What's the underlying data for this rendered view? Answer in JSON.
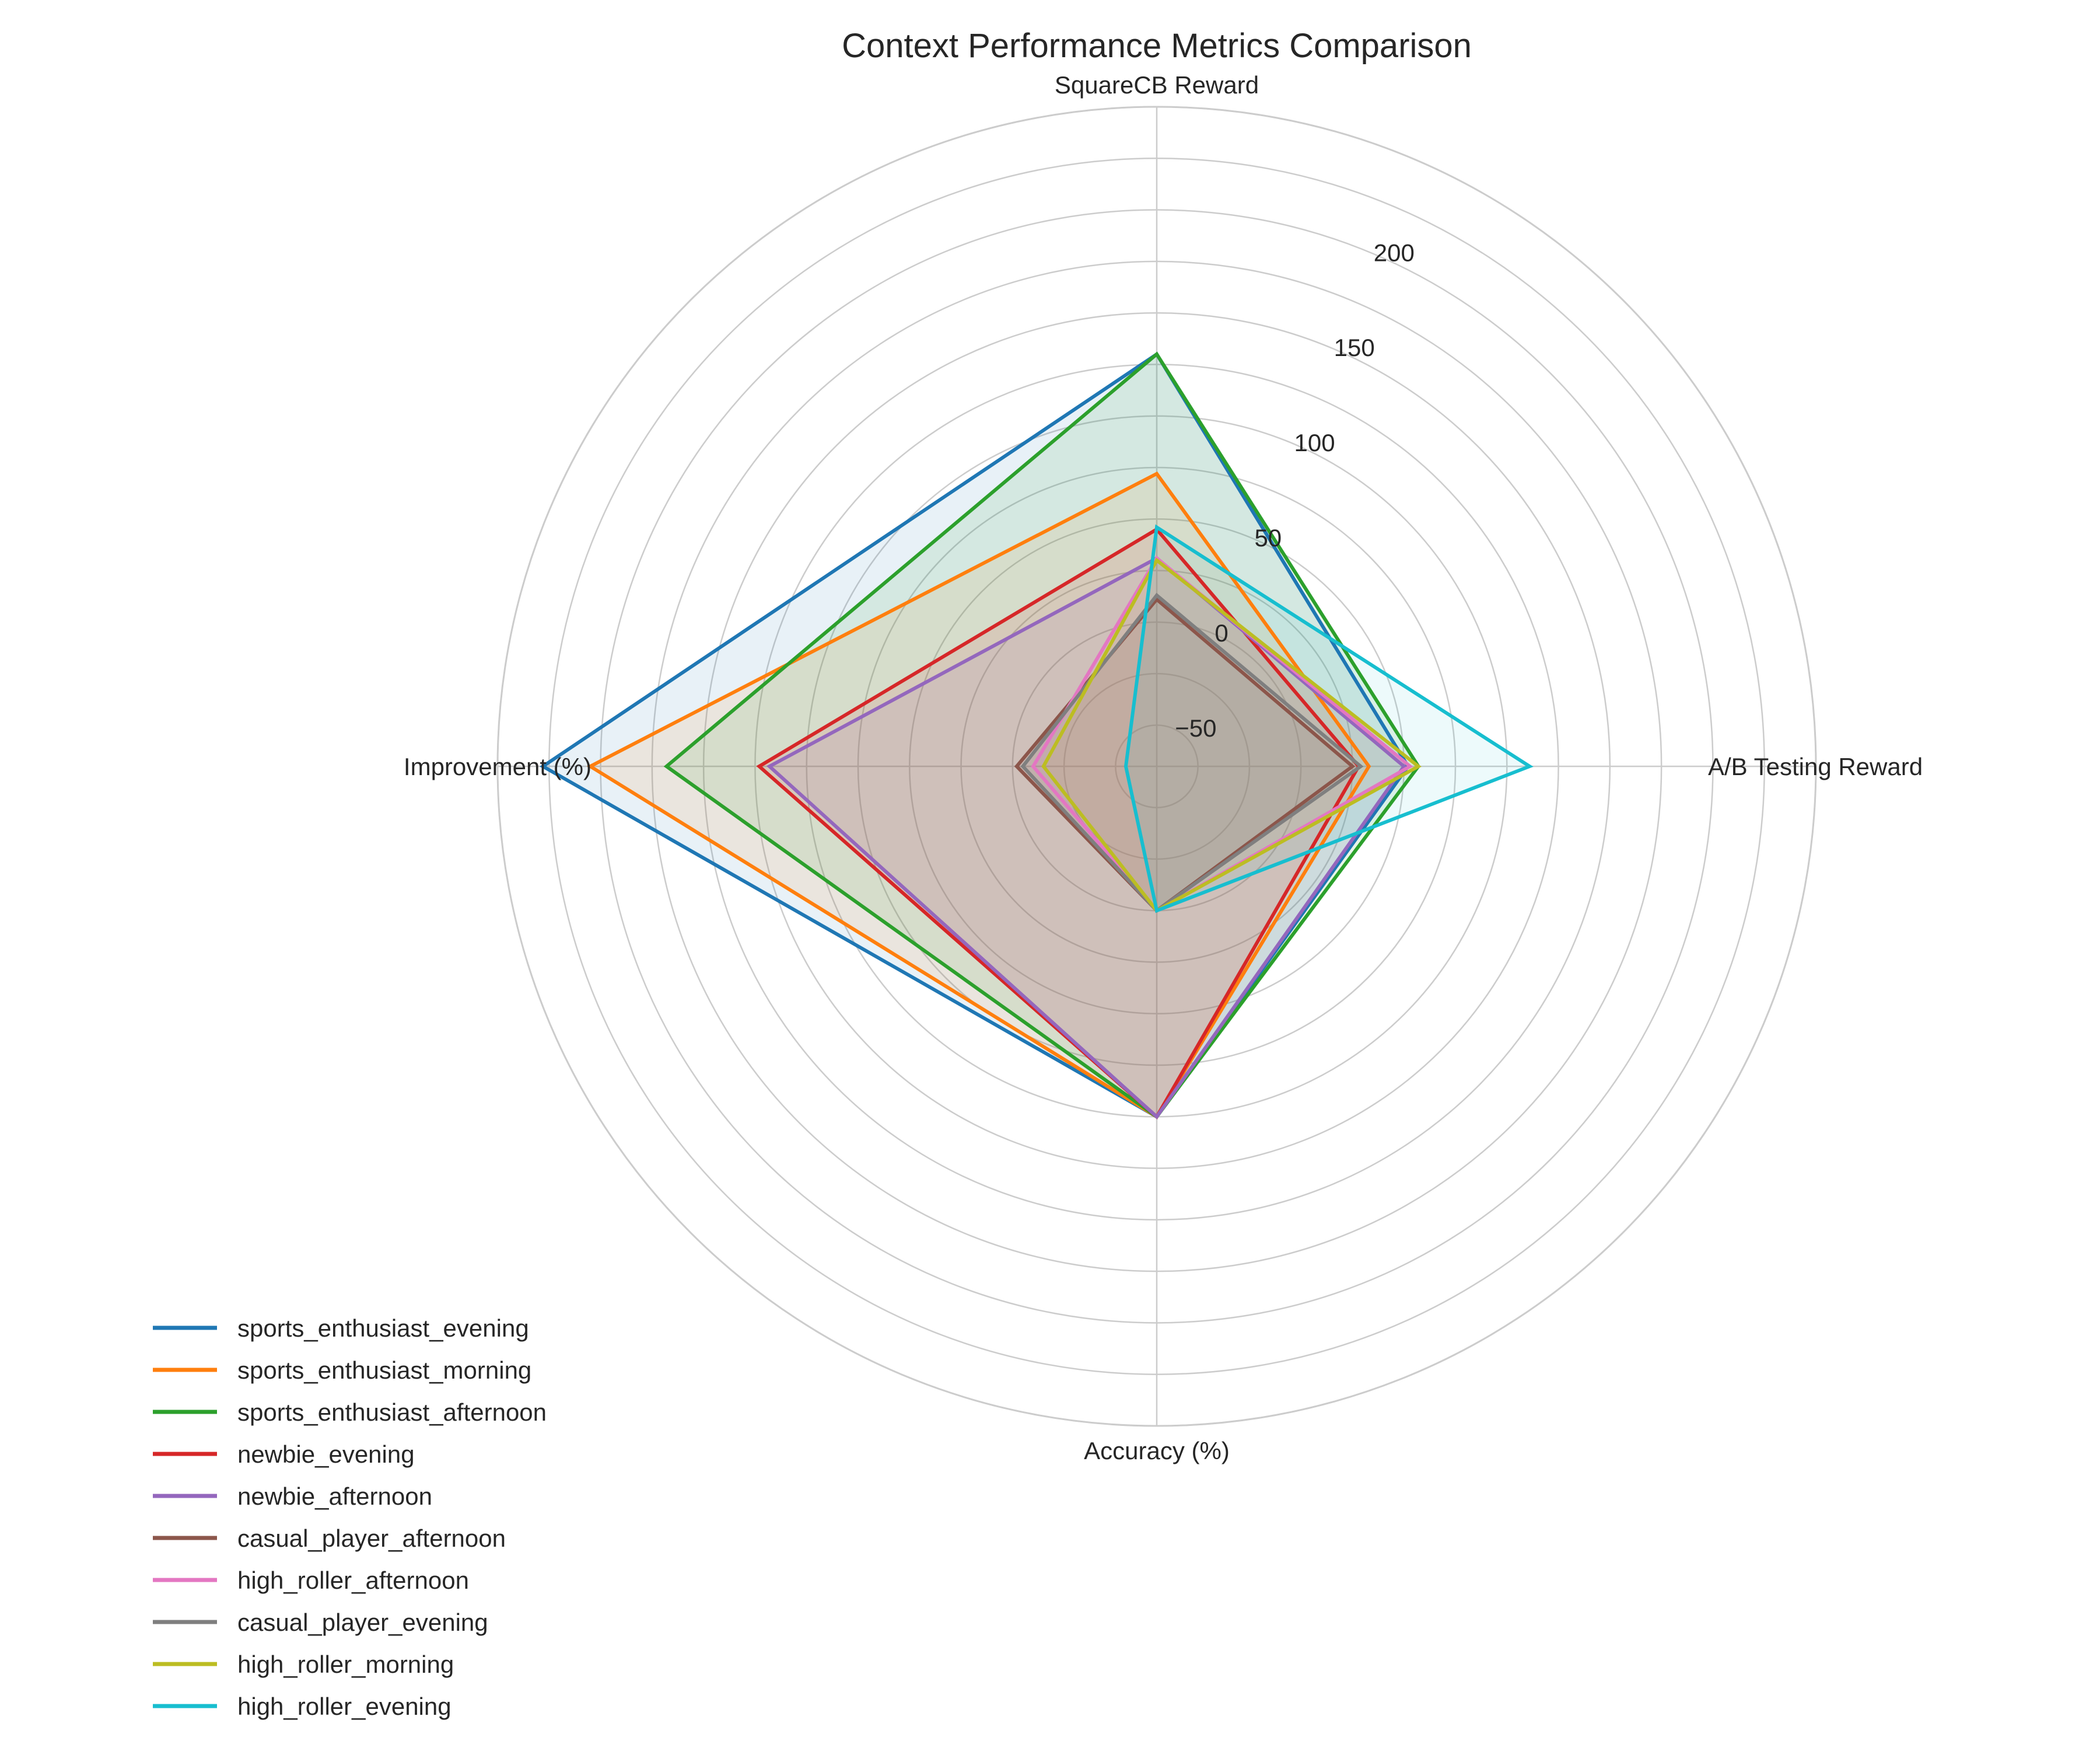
{
  "chart_data": {
    "type": "radar",
    "title": "Context Performance Metrics Comparison",
    "axes": [
      "SquareCB Reward",
      "A/B Testing Reward",
      "Accuracy (%)",
      "Improvement (%)"
    ],
    "r_ticks": [
      -50,
      0,
      50,
      100,
      150,
      200
    ],
    "r_tick_labels": [
      "−50",
      "0",
      "50",
      "100",
      "150",
      "200"
    ],
    "r_range": [
      -70,
      250
    ],
    "grid": true,
    "legend_position": "bottom-left",
    "series": [
      {
        "name": "sports_enthusiast_evening",
        "color": "#1f77b4",
        "filled": true,
        "values": [
          130,
          52,
          100,
          228
        ]
      },
      {
        "name": "sports_enthusiast_morning",
        "color": "#ff7f0e",
        "filled": true,
        "values": [
          72,
          33,
          100,
          205
        ]
      },
      {
        "name": "sports_enthusiast_afternoon",
        "color": "#2ca02c",
        "filled": true,
        "values": [
          130,
          57,
          100,
          168
        ]
      },
      {
        "name": "newbie_evening",
        "color": "#d62728",
        "filled": true,
        "values": [
          45,
          28,
          100,
          123
        ]
      },
      {
        "name": "newbie_afternoon",
        "color": "#9467bd",
        "filled": true,
        "values": [
          31,
          50,
          100,
          118
        ]
      },
      {
        "name": "casual_player_afternoon",
        "color": "#8c564b",
        "filled": true,
        "values": [
          11,
          25,
          0,
          -2
        ]
      },
      {
        "name": "high_roller_afternoon",
        "color": "#e377c2",
        "filled": false,
        "values": [
          31,
          53,
          0,
          -10
        ]
      },
      {
        "name": "casual_player_evening",
        "color": "#7f7f7f",
        "filled": false,
        "values": [
          13,
          29,
          0,
          -5
        ]
      },
      {
        "name": "high_roller_morning",
        "color": "#bcbd22",
        "filled": false,
        "values": [
          30,
          57,
          0,
          -15
        ]
      },
      {
        "name": "high_roller_evening",
        "color": "#17becf",
        "filled": false,
        "values": [
          46,
          111,
          0,
          -55
        ]
      }
    ]
  }
}
